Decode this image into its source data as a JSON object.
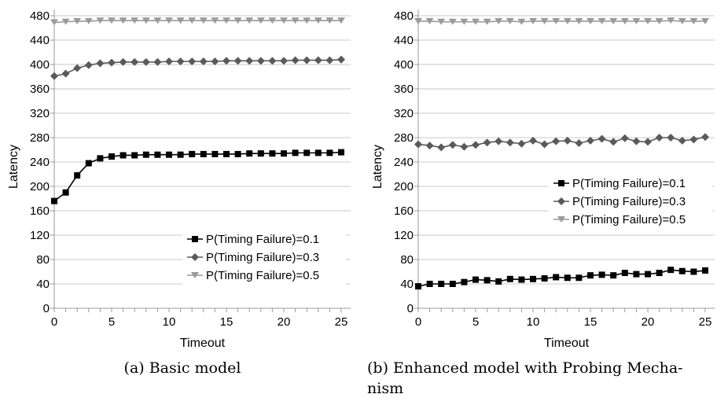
{
  "chart_data": [
    {
      "type": "line",
      "caption": "(a) Basic model",
      "xlabel": "Timeout",
      "ylabel": "Latency",
      "xlim": [
        0,
        25
      ],
      "ylim": [
        0,
        480
      ],
      "xticks": [
        0,
        5,
        10,
        15,
        20,
        25
      ],
      "yticks": [
        0,
        40,
        80,
        120,
        160,
        200,
        240,
        280,
        320,
        360,
        400,
        440,
        480
      ],
      "grid": "horizontal",
      "legend_position": "bottom-right",
      "x": [
        0,
        1,
        2,
        3,
        4,
        5,
        6,
        7,
        8,
        9,
        10,
        11,
        12,
        13,
        14,
        15,
        16,
        17,
        18,
        19,
        20,
        21,
        22,
        23,
        24,
        25
      ],
      "series": [
        {
          "name": "P(Timing Failure)=0.1",
          "color": "#000000",
          "marker": "square",
          "values": [
            176,
            190,
            218,
            238,
            246,
            249,
            251,
            251,
            252,
            252,
            252,
            252,
            253,
            253,
            253,
            253,
            253,
            254,
            254,
            254,
            254,
            255,
            255,
            255,
            255,
            256
          ]
        },
        {
          "name": "P(Timing Failure)=0.3",
          "color": "#5a5a5a",
          "marker": "diamond",
          "values": [
            381,
            385,
            394,
            399,
            402,
            403,
            404,
            404,
            404,
            404,
            405,
            405,
            405,
            405,
            405,
            406,
            406,
            406,
            406,
            406,
            406,
            407,
            407,
            407,
            407,
            408
          ]
        },
        {
          "name": "P(Timing Failure)=0.5",
          "color": "#9a9a9a",
          "marker": "triangle-down",
          "values": [
            469,
            470,
            471,
            471,
            472,
            472,
            472,
            472,
            472,
            472,
            472,
            472,
            472,
            472,
            472,
            472,
            472,
            472,
            472,
            472,
            472,
            472,
            472,
            472,
            472,
            472
          ]
        }
      ]
    },
    {
      "type": "line",
      "caption": "(b) Enhanced model with Probing Mecha-nism",
      "caption_lines": [
        "(b) Enhanced model with Probing Mecha-",
        "nism"
      ],
      "xlabel": "Timeout",
      "ylabel": "Latency",
      "xlim": [
        0,
        25
      ],
      "ylim": [
        0,
        480
      ],
      "xticks": [
        0,
        5,
        10,
        15,
        20,
        25
      ],
      "yticks": [
        0,
        40,
        80,
        120,
        160,
        200,
        240,
        280,
        320,
        360,
        400,
        440,
        480
      ],
      "grid": "horizontal",
      "legend_position": "middle-right",
      "x": [
        0,
        1,
        2,
        3,
        4,
        5,
        6,
        7,
        8,
        9,
        10,
        11,
        12,
        13,
        14,
        15,
        16,
        17,
        18,
        19,
        20,
        21,
        22,
        23,
        24,
        25
      ],
      "series": [
        {
          "name": "P(Timing Failure)=0.1",
          "color": "#000000",
          "marker": "square",
          "values": [
            36,
            40,
            40,
            40,
            43,
            47,
            46,
            44,
            48,
            47,
            48,
            49,
            51,
            50,
            50,
            54,
            55,
            54,
            58,
            56,
            56,
            58,
            63,
            61,
            60,
            62
          ]
        },
        {
          "name": "P(Timing Failure)=0.3",
          "color": "#5a5a5a",
          "marker": "diamond",
          "values": [
            269,
            267,
            264,
            268,
            265,
            268,
            272,
            274,
            272,
            270,
            275,
            269,
            274,
            275,
            271,
            275,
            278,
            273,
            279,
            274,
            273,
            280,
            280,
            275,
            277,
            281
          ]
        },
        {
          "name": "P(Timing Failure)=0.5",
          "color": "#9a9a9a",
          "marker": "triangle-down",
          "values": [
            471,
            471,
            470,
            470,
            470,
            470,
            470,
            471,
            471,
            470,
            471,
            471,
            471,
            471,
            471,
            471,
            471,
            471,
            471,
            471,
            471,
            471,
            472,
            471,
            471,
            471
          ]
        }
      ]
    }
  ]
}
